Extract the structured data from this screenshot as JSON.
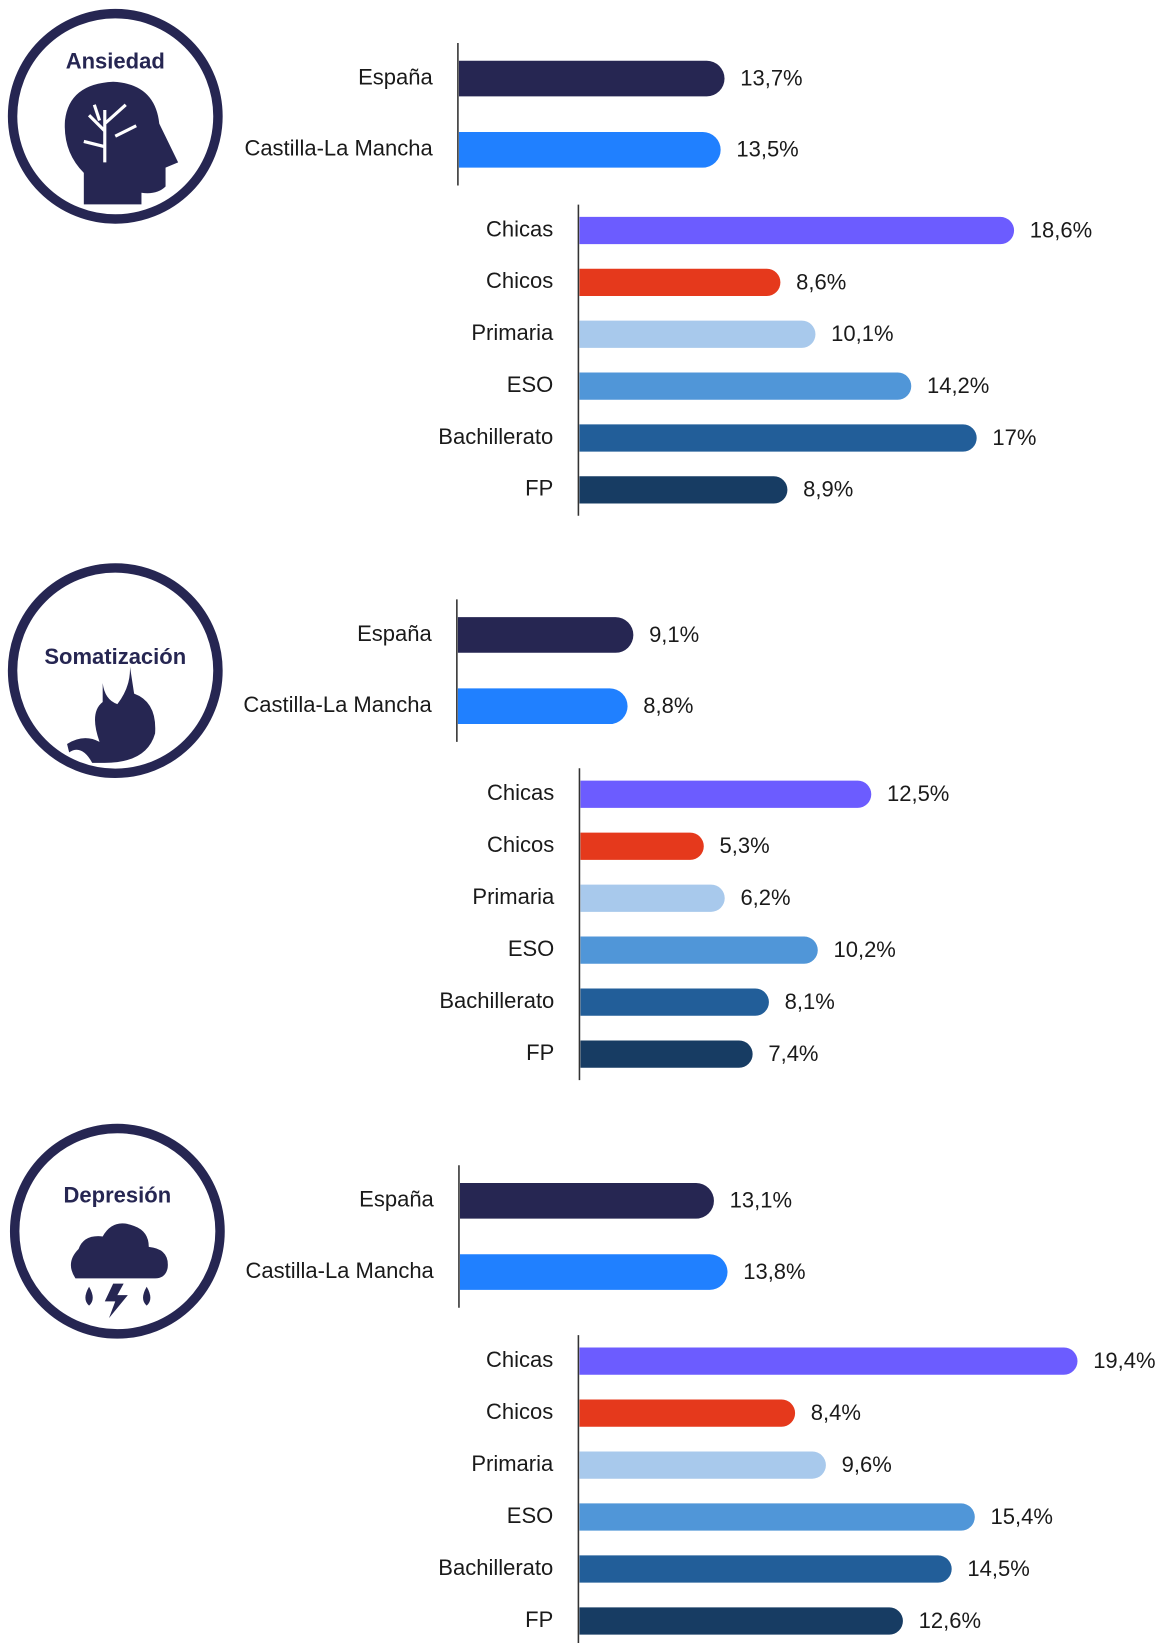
{
  "chart_data": [
    {
      "type": "hbar",
      "title": "Ansiedad",
      "categories": [
        "España",
        "Castilla-La Mancha"
      ],
      "values": [
        13.7,
        13.5
      ],
      "value_labels": [
        "13,7%",
        "13,5%"
      ],
      "colors": [
        "#262652",
        "#2080ff"
      ]
    },
    {
      "type": "hbar",
      "categories": [
        "Chicas",
        "Chicos",
        "Primaria",
        "ESO",
        "Bachillerato",
        "FP"
      ],
      "values": [
        18.6,
        8.6,
        10.1,
        14.2,
        17,
        8.9
      ],
      "value_labels": [
        "18,6%",
        "8,6%",
        "10,1%",
        "14,2%",
        "17%",
        "8,9%"
      ],
      "colors": [
        "#6c5cff",
        "#e5391c",
        "#a8c9ec",
        "#5096d8",
        "#225e99",
        "#173c63"
      ]
    },
    {
      "type": "hbar",
      "title": "Somatización",
      "categories": [
        "España",
        "Castilla-La Mancha"
      ],
      "values": [
        9.1,
        8.8
      ],
      "value_labels": [
        "9,1%",
        "8,8%"
      ],
      "colors": [
        "#262652",
        "#2080ff"
      ]
    },
    {
      "type": "hbar",
      "categories": [
        "Chicas",
        "Chicos",
        "Primaria",
        "ESO",
        "Bachillerato",
        "FP"
      ],
      "values": [
        12.5,
        5.3,
        6.2,
        10.2,
        8.1,
        7.4
      ],
      "value_labels": [
        "12,5%",
        "5,3%",
        "6,2%",
        "10,2%",
        "8,1%",
        "7,4%"
      ],
      "colors": [
        "#6c5cff",
        "#e5391c",
        "#a8c9ec",
        "#5096d8",
        "#225e99",
        "#173c63"
      ]
    },
    {
      "type": "hbar",
      "title": "Depresión",
      "categories": [
        "España",
        "Castilla-La Mancha"
      ],
      "values": [
        13.1,
        13.8
      ],
      "value_labels": [
        "13,1%",
        "13,8%"
      ],
      "colors": [
        "#262652",
        "#2080ff"
      ]
    },
    {
      "type": "hbar",
      "categories": [
        "Chicas",
        "Chicos",
        "Primaria",
        "ESO",
        "Bachillerato",
        "FP"
      ],
      "values": [
        19.4,
        8.4,
        9.6,
        15.4,
        14.5,
        12.6
      ],
      "value_labels": [
        "19,4%",
        "8,4%",
        "9,6%",
        "15,4%",
        "14,5%",
        "12,6%"
      ],
      "colors": [
        "#6c5cff",
        "#e5391c",
        "#a8c9ec",
        "#5096d8",
        "#225e99",
        "#173c63"
      ]
    }
  ]
}
